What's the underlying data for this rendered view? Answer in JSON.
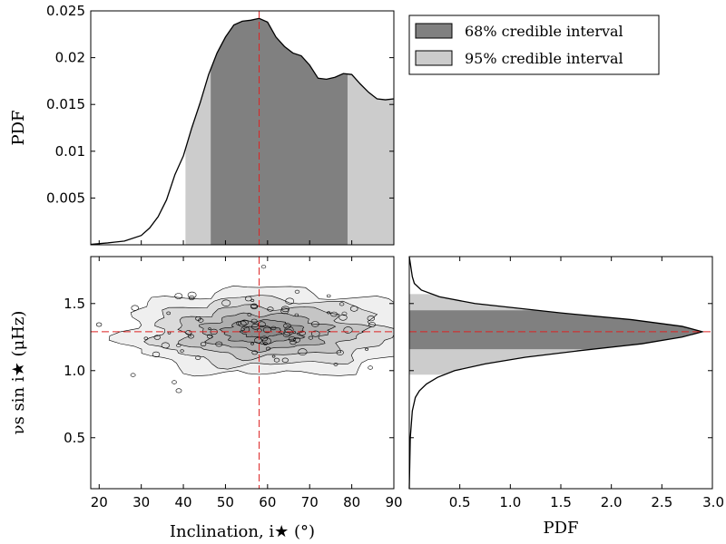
{
  "chart_data": [
    {
      "type": "area",
      "panel": "inclination-pdf",
      "xlim": [
        18,
        90
      ],
      "ylim": [
        0,
        0.025
      ],
      "ylabel": "PDF",
      "yticks": [
        0.005,
        0.01,
        0.015,
        0.02,
        0.025
      ],
      "ytick_labels": [
        "0.005",
        "0.01",
        "0.015",
        "0.02",
        "0.025"
      ],
      "x": [
        18,
        22,
        26,
        30,
        32,
        34,
        36,
        38,
        40,
        42,
        44,
        46,
        48,
        50,
        52,
        54,
        56,
        58,
        60,
        62,
        64,
        66,
        68,
        70,
        72,
        74,
        76,
        78,
        80,
        82,
        84,
        86,
        88,
        90
      ],
      "y": [
        5e-05,
        0.0002,
        0.0004,
        0.001,
        0.0018,
        0.003,
        0.0048,
        0.0075,
        0.0095,
        0.0125,
        0.0152,
        0.0182,
        0.0205,
        0.0222,
        0.0235,
        0.0239,
        0.024,
        0.0242,
        0.0238,
        0.0222,
        0.0212,
        0.0205,
        0.0202,
        0.0192,
        0.0178,
        0.0177,
        0.0179,
        0.0183,
        0.0182,
        0.0172,
        0.0163,
        0.0156,
        0.0155,
        0.0156
      ],
      "interval_68": [
        46.5,
        79
      ],
      "interval_95": [
        40.5,
        90
      ],
      "median_line": 58,
      "colors": {
        "band68": "#808080",
        "band95": "#cccccc",
        "line": "#000000",
        "marker": "#dd2222"
      }
    },
    {
      "type": "heatmap",
      "panel": "joint-contour",
      "xlim": [
        18,
        90
      ],
      "ylim": [
        0.12,
        1.85
      ],
      "xlabel": "Inclination, i★ (°)",
      "ylabel": "νs sin i★   (μHz)",
      "xticks": [
        20,
        30,
        40,
        50,
        60,
        70,
        80,
        90
      ],
      "xtick_labels": [
        "20",
        "30",
        "40",
        "50",
        "60",
        "70",
        "80",
        "90"
      ],
      "yticks": [
        0.5,
        1.0,
        1.5
      ],
      "ytick_labels": [
        "0.5",
        "1.0",
        "1.5"
      ],
      "center": [
        58,
        1.29
      ],
      "spread": [
        14,
        0.14
      ],
      "crosshair": {
        "x": 58,
        "y": 1.29
      },
      "colors": {
        "contour": "#000000",
        "fill": "#666666",
        "marker": "#dd2222"
      }
    },
    {
      "type": "area",
      "panel": "rate-pdf",
      "orientation": "horizontal",
      "xlim": [
        0,
        3.0
      ],
      "ylim": [
        0.12,
        1.85
      ],
      "xlabel": "PDF",
      "xticks": [
        0.5,
        1.0,
        1.5,
        2.0,
        2.5,
        3.0
      ],
      "xtick_labels": [
        "0.5",
        "1.0",
        "1.5",
        "2.0",
        "2.5",
        "3.0"
      ],
      "y": [
        0.12,
        0.5,
        0.7,
        0.8,
        0.85,
        0.9,
        0.95,
        1.0,
        1.05,
        1.1,
        1.15,
        1.2,
        1.25,
        1.29,
        1.33,
        1.38,
        1.43,
        1.5,
        1.55,
        1.6,
        1.65,
        1.7,
        1.75,
        1.85
      ],
      "x": [
        0.0,
        0.01,
        0.03,
        0.06,
        0.1,
        0.17,
        0.28,
        0.45,
        0.75,
        1.15,
        1.7,
        2.3,
        2.7,
        2.9,
        2.7,
        2.2,
        1.5,
        0.65,
        0.3,
        0.12,
        0.05,
        0.03,
        0.02,
        0.0
      ],
      "interval_68": [
        1.16,
        1.45
      ],
      "interval_95": [
        0.97,
        1.57
      ],
      "median_line": 1.29,
      "colors": {
        "band68": "#808080",
        "band95": "#cccccc",
        "line": "#000000",
        "marker": "#dd2222"
      }
    }
  ],
  "legend": {
    "placement": "top-right",
    "items": [
      {
        "label": "68% credible interval",
        "color": "#808080"
      },
      {
        "label": "95% credible interval",
        "color": "#cccccc"
      }
    ]
  }
}
